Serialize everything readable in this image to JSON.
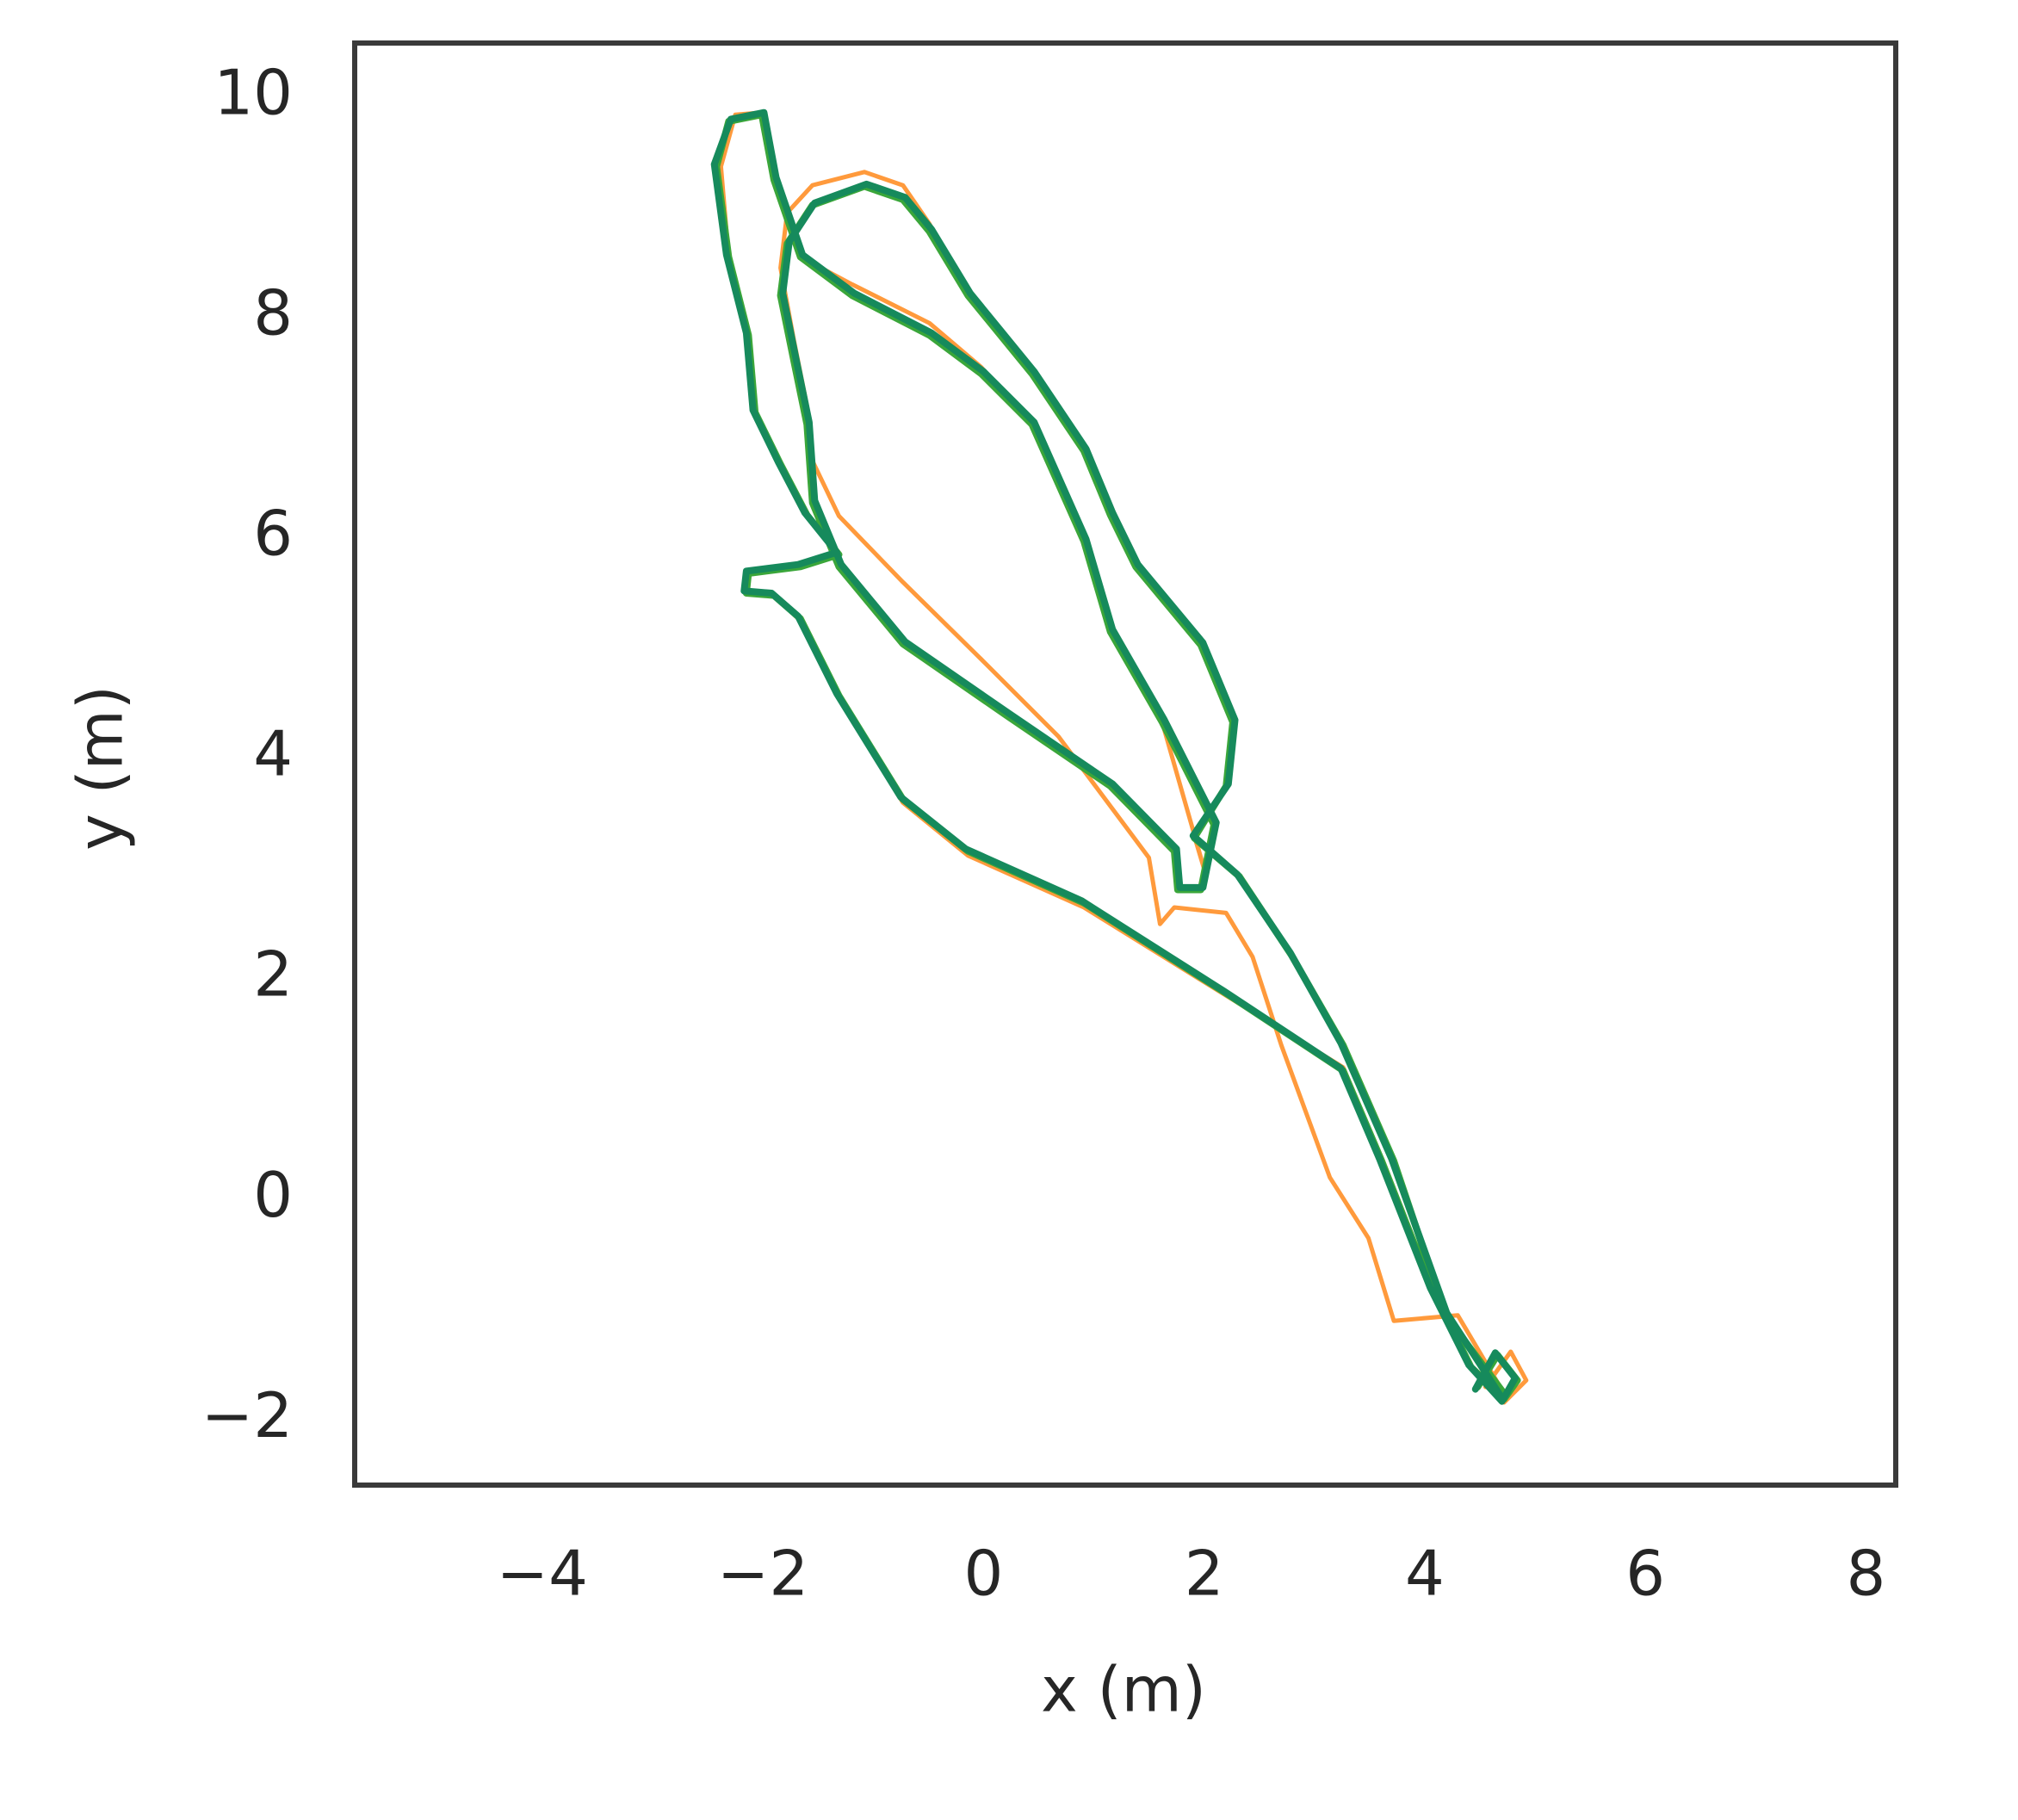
{
  "chart_data": {
    "type": "line",
    "xlabel": "x (m)",
    "ylabel": "y (m)",
    "xlim": [
      -5.7,
      8.27
    ],
    "ylim": [
      -2.59,
      10.49
    ],
    "xticks": [
      {
        "value": -4,
        "label": "−4"
      },
      {
        "value": -2,
        "label": "−2"
      },
      0,
      2,
      4,
      6,
      8
    ],
    "yticks": [
      {
        "value": -2,
        "label": "−2"
      },
      0,
      2,
      4,
      6,
      8,
      10
    ],
    "grid": false,
    "series": [
      {
        "color": "#ff9a3c",
        "x": [
          4.72,
          4.3,
          3.72,
          3.49,
          3.14,
          2.7,
          2.44,
          2.2,
          1.73,
          1.6,
          1.5,
          0.68,
          -0.02,
          -0.73,
          -1.31,
          -1.55,
          -1.6,
          -1.72,
          -1.84,
          -1.78,
          -1.55,
          -1.08,
          -0.73,
          -0.49,
          -0.14,
          0.44,
          0.91,
          1.15,
          1.38,
          1.97,
          2.26,
          2.2,
          1.91,
          2.0,
          1.62,
          1.15,
          0.91,
          0.44,
          -0.02,
          -0.49,
          -1.19,
          -1.66,
          -1.9,
          -2.01,
          -2.25,
          -2.38,
          -2.31,
          -2.13,
          -2.07,
          -1.84,
          -1.6,
          -1.31,
          -1.66,
          -2.13,
          -2.15,
          -1.9,
          -1.66,
          -1.31,
          -0.73,
          -0.14,
          0.91,
          2.2,
          3.26,
          3.61,
          4.07,
          4.42,
          4.72,
          4.92,
          4.78,
          4.55
        ],
        "y": [
          -1.76,
          -1.05,
          -1.1,
          -0.35,
          0.2,
          1.4,
          2.2,
          2.6,
          2.65,
          2.5,
          3.1,
          4.2,
          4.9,
          5.6,
          6.2,
          6.7,
          7.2,
          7.8,
          8.45,
          8.95,
          9.2,
          9.32,
          9.2,
          8.85,
          8.2,
          7.5,
          6.8,
          6.21,
          5.74,
          5.05,
          4.33,
          3.75,
          3.3,
          3.0,
          4.33,
          5.15,
          5.97,
          7.03,
          7.55,
          7.95,
          8.3,
          8.55,
          9.25,
          9.86,
          9.84,
          9.37,
          8.55,
          7.84,
          7.14,
          6.67,
          6.21,
          5.85,
          5.74,
          5.68,
          5.5,
          5.48,
          5.25,
          4.55,
          3.6,
          3.12,
          2.65,
          1.85,
          1.2,
          0.35,
          -0.82,
          -1.52,
          -1.84,
          -1.64,
          -1.38,
          -1.7
        ]
      },
      {
        "color": "#3aa63a",
        "x": [
          4.72,
          4.19,
          3.72,
          3.26,
          2.79,
          2.32,
          1.91,
          2.2,
          2.26,
          1.97,
          1.38,
          1.15,
          0.91,
          0.44,
          -0.14,
          -0.49,
          -0.73,
          -1.08,
          -1.55,
          -1.78,
          -1.84,
          -1.72,
          -1.6,
          -1.55,
          -1.31,
          -0.73,
          0.21,
          1.15,
          1.73,
          1.76,
          1.97,
          2.09,
          1.62,
          1.15,
          0.91,
          0.44,
          -0.02,
          -0.49,
          -1.19,
          -1.66,
          -1.9,
          -2.01,
          -2.31,
          -2.42,
          -2.31,
          -2.13,
          -2.07,
          -1.84,
          -1.6,
          -1.31,
          -1.66,
          -2.13,
          -2.15,
          -1.9,
          -1.66,
          -1.31,
          -0.73,
          -0.14,
          0.91,
          2.2,
          3.26,
          3.61,
          4.07,
          4.42,
          4.72,
          4.84,
          4.66,
          4.48
        ],
        "y": [
          -1.76,
          -1.05,
          0.35,
          1.4,
          2.22,
          2.93,
          3.28,
          3.75,
          4.33,
          5.03,
          5.74,
          6.21,
          6.79,
          7.49,
          8.2,
          8.78,
          9.07,
          9.19,
          9.02,
          8.67,
          8.2,
          7.61,
          7.03,
          6.32,
          5.74,
          5.04,
          4.39,
          3.75,
          3.16,
          2.81,
          2.81,
          3.4,
          4.33,
          5.15,
          5.97,
          7.03,
          7.49,
          7.84,
          8.2,
          8.55,
          9.25,
          9.84,
          9.78,
          9.37,
          8.55,
          7.84,
          7.14,
          6.67,
          6.21,
          5.85,
          5.74,
          5.68,
          5.5,
          5.48,
          5.27,
          4.57,
          3.63,
          3.16,
          2.69,
          1.87,
          1.17,
          0.35,
          -0.82,
          -1.52,
          -1.81,
          -1.64,
          -1.41,
          -1.7
        ]
      },
      {
        "color": "#168a5c",
        "x": [
          4.7,
          4.2,
          3.7,
          3.24,
          2.78,
          2.3,
          1.9,
          2.22,
          2.28,
          1.99,
          1.4,
          1.17,
          0.93,
          0.46,
          -0.12,
          -0.47,
          -0.71,
          -1.06,
          -1.53,
          -1.76,
          -1.82,
          -1.7,
          -1.58,
          -1.53,
          -1.29,
          -0.71,
          0.23,
          1.17,
          1.75,
          1.78,
          1.99,
          2.11,
          1.64,
          1.17,
          0.93,
          0.46,
          0.0,
          -0.47,
          -1.17,
          -1.64,
          -1.88,
          -1.99,
          -2.29,
          -2.44,
          -2.33,
          -2.15,
          -2.09,
          -1.86,
          -1.62,
          -1.33,
          -1.68,
          -2.15,
          -2.17,
          -1.92,
          -1.68,
          -1.33,
          -0.75,
          -0.16,
          0.89,
          2.18,
          3.24,
          3.59,
          4.05,
          4.4,
          4.7,
          4.82,
          4.64,
          4.46
        ],
        "y": [
          -1.8,
          -1.03,
          0.37,
          1.42,
          2.24,
          2.95,
          3.3,
          3.77,
          4.35,
          5.05,
          5.76,
          6.23,
          6.81,
          7.51,
          8.22,
          8.8,
          9.09,
          9.21,
          9.04,
          8.69,
          8.22,
          7.63,
          7.05,
          6.34,
          5.76,
          5.06,
          4.41,
          3.77,
          3.18,
          2.83,
          2.83,
          3.42,
          4.35,
          5.17,
          5.99,
          7.05,
          7.51,
          7.86,
          8.22,
          8.57,
          9.27,
          9.86,
          9.8,
          9.39,
          8.57,
          7.86,
          7.16,
          6.69,
          6.23,
          5.87,
          5.76,
          5.7,
          5.52,
          5.5,
          5.29,
          4.59,
          3.65,
          3.18,
          2.71,
          1.89,
          1.19,
          0.37,
          -0.8,
          -1.5,
          -1.83,
          -1.62,
          -1.39,
          -1.72
        ]
      }
    ]
  }
}
